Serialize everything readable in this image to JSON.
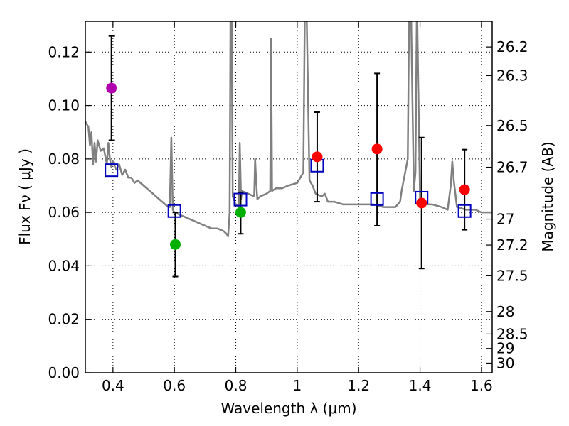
{
  "chart_data": {
    "type": "scatter",
    "xlabel": "Wavelength  λ (μm)",
    "ylabel": "Flux  Fν  ( μJy )",
    "y2label": "Magnitude (AB)",
    "xlim": [
      0.31,
      1.635
    ],
    "ylim": [
      0.0,
      0.1315
    ],
    "grid": true,
    "x_ticks": [
      0.4,
      0.6,
      0.8,
      1.0,
      1.2,
      1.4,
      1.6
    ],
    "x_tick_labels": [
      "0.4",
      "0.6",
      "0.8",
      "1",
      "1.2",
      "1.4",
      "1.6"
    ],
    "y_ticks": [
      0.0,
      0.02,
      0.04,
      0.06,
      0.08,
      0.1,
      0.12
    ],
    "y_tick_labels": [
      "0.00",
      "0.02",
      "0.04",
      "0.06",
      "0.08",
      "0.10",
      "0.12"
    ],
    "mag_ticks": [
      {
        "label": "26.2",
        "flux": 0.1219
      },
      {
        "label": "26.3",
        "flux": 0.1112
      },
      {
        "label": "26.5",
        "flux": 0.0925
      },
      {
        "label": "26.7",
        "flux": 0.0769
      },
      {
        "label": "27",
        "flux": 0.0575
      },
      {
        "label": "27.2",
        "flux": 0.0478
      },
      {
        "label": "27.5",
        "flux": 0.0363
      },
      {
        "label": "28",
        "flux": 0.0229
      },
      {
        "label": "28.5",
        "flux": 0.0145
      },
      {
        "label": "29",
        "flux": 0.0091
      },
      {
        "label": "30",
        "flux": 0.0036
      }
    ],
    "series": [
      {
        "name": "model spectrum",
        "kind": "line",
        "color": "#808080",
        "x": [
          0.31,
          0.32,
          0.325,
          0.33,
          0.335,
          0.34,
          0.345,
          0.35,
          0.36,
          0.37,
          0.38,
          0.385,
          0.39,
          0.395,
          0.4,
          0.41,
          0.42,
          0.43,
          0.44,
          0.45,
          0.46,
          0.47,
          0.48,
          0.5,
          0.52,
          0.54,
          0.56,
          0.58,
          0.585,
          0.59,
          0.595,
          0.6,
          0.62,
          0.64,
          0.66,
          0.68,
          0.7,
          0.72,
          0.74,
          0.76,
          0.77,
          0.775,
          0.78,
          0.783,
          0.786,
          0.79,
          0.8,
          0.81,
          0.813,
          0.817,
          0.82,
          0.84,
          0.86,
          0.863,
          0.867,
          0.87,
          0.88,
          0.9,
          0.912,
          0.915,
          0.918,
          0.93,
          0.95,
          0.97,
          1.0,
          1.02,
          1.025,
          1.03,
          1.04,
          1.05,
          1.06,
          1.08,
          1.09,
          1.1,
          1.12,
          1.15,
          1.2,
          1.25,
          1.28,
          1.3,
          1.32,
          1.335,
          1.34,
          1.36,
          1.365,
          1.37,
          1.38,
          1.385,
          1.39,
          1.4,
          1.42,
          1.44,
          1.47,
          1.49,
          1.5,
          1.505,
          1.51,
          1.52,
          1.55,
          1.58,
          1.6,
          1.635
        ],
        "y": [
          0.094,
          0.092,
          0.085,
          0.09,
          0.078,
          0.086,
          0.079,
          0.087,
          0.083,
          0.084,
          0.078,
          0.086,
          0.08,
          0.077,
          0.079,
          0.076,
          0.078,
          0.074,
          0.076,
          0.073,
          0.073,
          0.071,
          0.072,
          0.07,
          0.068,
          0.066,
          0.064,
          0.062,
          0.062,
          0.088,
          0.061,
          0.06,
          0.059,
          0.058,
          0.057,
          0.056,
          0.055,
          0.054,
          0.054,
          0.053,
          0.052,
          0.051,
          0.06,
          0.14,
          0.14,
          0.066,
          0.063,
          0.062,
          0.086,
          0.065,
          0.068,
          0.067,
          0.066,
          0.08,
          0.07,
          0.065,
          0.066,
          0.067,
          0.068,
          0.125,
          0.068,
          0.069,
          0.069,
          0.07,
          0.071,
          0.075,
          0.14,
          0.14,
          0.072,
          0.07,
          0.067,
          0.066,
          0.067,
          0.064,
          0.064,
          0.063,
          0.063,
          0.063,
          0.062,
          0.062,
          0.062,
          0.064,
          0.068,
          0.08,
          0.14,
          0.14,
          0.068,
          0.075,
          0.14,
          0.064,
          0.063,
          0.063,
          0.062,
          0.061,
          0.07,
          0.079,
          0.072,
          0.062,
          0.061,
          0.061,
          0.06,
          0.06
        ]
      },
      {
        "name": "model band fluxes",
        "kind": "open-square",
        "color": "#0000c0",
        "x": [
          0.395,
          0.6,
          0.815,
          1.065,
          1.26,
          1.405,
          1.545
        ],
        "y": [
          0.0758,
          0.0605,
          0.0648,
          0.0775,
          0.065,
          0.0655,
          0.0605
        ]
      },
      {
        "name": "observed fluxes",
        "kind": "filled-circle",
        "x": [
          0.395,
          0.603,
          0.816,
          1.065,
          1.26,
          1.405,
          1.545
        ],
        "y": [
          0.1065,
          0.048,
          0.06,
          0.0808,
          0.0837,
          0.0635,
          0.0685
        ],
        "err_low": [
          0.087,
          0.036,
          0.052,
          0.064,
          0.055,
          0.039,
          0.0535
        ],
        "err_high": [
          0.126,
          0.06,
          0.0675,
          0.0975,
          0.112,
          0.088,
          0.0835
        ],
        "colors": [
          "#b000b0",
          "#00b000",
          "#00b000",
          "#ff0000",
          "#ff0000",
          "#ff0000",
          "#ff0000"
        ]
      }
    ]
  }
}
